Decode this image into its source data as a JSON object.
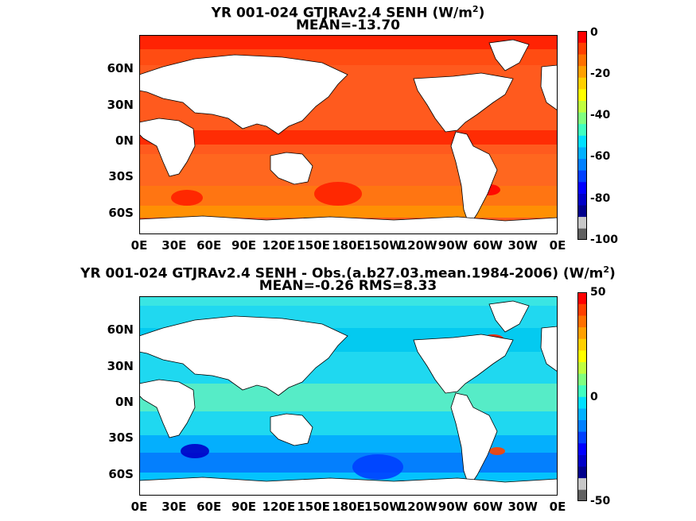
{
  "chart_data": [
    {
      "type": "heatmap",
      "title": "YR 001-024 GTJRAv2.4  SENH (W/m",
      "title_sup": "2",
      "title_suffix": ")",
      "subtitle": "MEAN=-13.70",
      "xticks": [
        "0E",
        "30E",
        "60E",
        "90E",
        "120E",
        "150E",
        "180E",
        "150W",
        "120W",
        "90W",
        "60W",
        "30W",
        "0E"
      ],
      "yticks": [
        "60N",
        "30N",
        "0N",
        "30S",
        "60S"
      ],
      "ytick_values": [
        60,
        30,
        0,
        -30,
        -60
      ],
      "xlim": [
        0,
        360
      ],
      "ylim": [
        -78,
        88
      ],
      "colorbar": {
        "ticks": [
          "0",
          "-20",
          "-40",
          "-60",
          "-80",
          "-100"
        ],
        "min": -100,
        "max": 0
      },
      "colors": [
        "#606060",
        "#c8c8c8",
        "#00008c",
        "#0000c8",
        "#0000ff",
        "#0040ff",
        "#0080ff",
        "#00b0ff",
        "#00e0ff",
        "#40ffc0",
        "#80ff80",
        "#c0ff40",
        "#ffff00",
        "#ffd000",
        "#ffa000",
        "#ff7000",
        "#ff4000",
        "#ff0000"
      ]
    },
    {
      "type": "heatmap",
      "title": "YR 001-024 GTJRAv2.4 SENH - Obs.(a.b27.03.mean.1984-2006) (W/m",
      "title_sup": "2",
      "title_suffix": ")",
      "subtitle": "MEAN=-0.26 RMS=8.33",
      "xticks": [
        "0E",
        "30E",
        "60E",
        "90E",
        "120E",
        "150E",
        "180E",
        "150W",
        "120W",
        "90W",
        "60W",
        "30W",
        "0E"
      ],
      "yticks": [
        "60N",
        "30N",
        "0N",
        "30S",
        "60S"
      ],
      "ytick_values": [
        60,
        30,
        0,
        -30,
        -60
      ],
      "xlim": [
        0,
        360
      ],
      "ylim": [
        -78,
        88
      ],
      "colorbar": {
        "ticks": [
          "50",
          "0",
          "-50"
        ],
        "min": -50,
        "max": 50
      },
      "colors": [
        "#606060",
        "#c8c8c8",
        "#00008c",
        "#0000c8",
        "#0000ff",
        "#0040ff",
        "#0080ff",
        "#00b0ff",
        "#00e0ff",
        "#40ffc0",
        "#80ff80",
        "#c0ff40",
        "#ffff00",
        "#ffd000",
        "#ffa000",
        "#ff7000",
        "#ff4000",
        "#ff0000"
      ]
    }
  ]
}
